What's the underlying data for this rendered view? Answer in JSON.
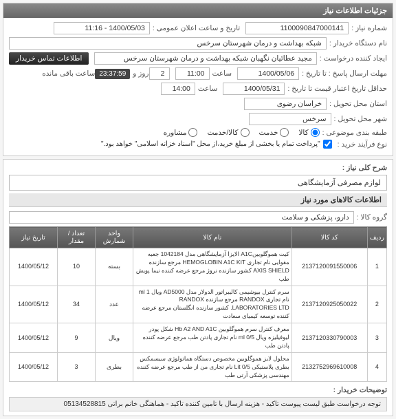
{
  "panel1": {
    "header": "جزئیات اطلاعات نیاز",
    "req_no_label": "شماره نیاز :",
    "req_no": "1100090847000141",
    "announce_label": "تاریخ و ساعت اعلان عمومی :",
    "announce": "1400/05/03 - 11:16",
    "org_label": "نام دستگاه خریدار :",
    "org": "شبکه بهداشت و درمان شهرستان سرخس",
    "creator_label": "ایجاد کننده درخواست :",
    "creator": "مجید عطائیان نگهبان شبکه بهداشت و درمان شهرستان سرخس",
    "contact_btn": "اطلاعات تماس خریدار",
    "deadline_label": "مهلت ارسال پاسخ : تا تاریخ :",
    "deadline_date": "1400/05/06",
    "deadline_time_label": "ساعت",
    "deadline_time": "11:00",
    "day_no": "2",
    "days_label": "روز و",
    "remaining": "23:37:59",
    "remaining_label": "ساعت باقی مانده",
    "valid_label": "حداقل تاریخ اعتبار قیمت تا تاریخ :",
    "valid_date": "1400/05/31",
    "valid_time": "14:00",
    "province_label": "استان محل تحویل :",
    "province": "خراسان رضوی",
    "city_label": "شهر محل تحویل :",
    "city": "سرخس",
    "topic_label": "طبقه بندی موضوعی :",
    "topic_opts": [
      "کالا",
      "خدمت",
      "کالا/خدمت",
      "مشاوره"
    ],
    "buy_label": "نوع فرآیند خرید :",
    "buy_note": "\"پرداخت تمام یا بخشی از مبلغ خرید،از محل \"اسناد خزانه اسلامی\" خواهد بود.\""
  },
  "panel2": {
    "title_label": "شرح کلی نیاز :",
    "title": "لوازم مصرفی آزمایشگاهی",
    "items_header": "اطلاعات کالاهای مورد نیاز",
    "group_label": "گروه کالا :",
    "group": "دارو، پزشکی و سلامت",
    "columns": [
      "ردیف",
      "کد کالا",
      "نام کالا",
      "واحد شمارش",
      "تعداد / مقدار",
      "تاریخ نیاز"
    ],
    "rows": [
      {
        "n": "1",
        "code": "2137120091550006",
        "name": "کیت هموگلوبینA1C الایزا آزمایشگاهی مدل 1042184 جعبه مقوایی نام تجاری HEMOGLOBIN A1C KIT مرجع سازنده AXIS SHIELD کشور سازنده نروژ مرجع عرضه کننده نیما پویش طب",
        "unit": "بسته",
        "qty": "10",
        "date": "1400/05/12"
      },
      {
        "n": "2",
        "code": "2137120925050022",
        "name": "سرم کنترل بیوشیمی کالیبراتور الدولار مدل AD5000 ویال ml 1 نام تجاری RANDOX مرجع سازنده RANDOX LABORATORIES LTD. کشور سازنده انگلستان مرجع عرضه کننده توسعه کیمیای سعادت",
        "unit": "عدد",
        "qty": "34",
        "date": "1400/05/12"
      },
      {
        "n": "3",
        "code": "2137120330790003",
        "name": "معرف کنترل سرم هموگلوبین Hb A2 AND A1C شکل پودر لیوفیلیزه ویال ml 0/5 نام تجاری پادتن طب مرجع عرضه کننده پادتن طب",
        "unit": "ویال",
        "qty": "9",
        "date": "1400/05/12"
      },
      {
        "n": "4",
        "code": "2132752969610008",
        "name": "محلول لایز هموگلوبین مخصوص دستگاه هماتولوژی سیسمکس بطری پلاستیکی Lit 0/5 نام تجاری من از طب مرجع عرضه کننده مهندسی پزشکی آرتی طب",
        "unit": "بطری",
        "qty": "3",
        "date": "1400/05/12"
      }
    ]
  },
  "footer": {
    "label": "توضیحات خریدار :",
    "text": "توجه درخواست طبق لیست پیوست تاکید - هزینه ارسال با تامین کننده تاکید - هماهنگی خانم براتی 05134528815"
  }
}
